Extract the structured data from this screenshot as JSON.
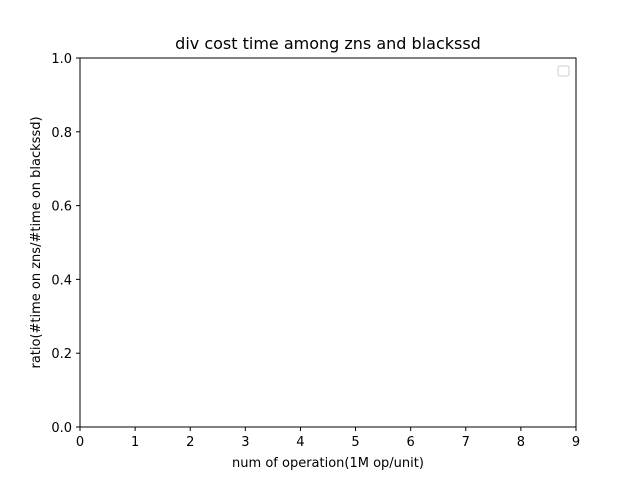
{
  "chart_data": {
    "type": "line",
    "title": "div cost time among zns and blackssd",
    "xlabel": "num of operation(1M op/unit)",
    "ylabel": "ratio(#time on zns/#time on blackssd)",
    "xlim": [
      0,
      9
    ],
    "ylim": [
      0.0,
      1.0
    ],
    "xticks": [
      "0",
      "1",
      "2",
      "3",
      "4",
      "5",
      "6",
      "7",
      "8",
      "9"
    ],
    "yticks": [
      "0.0",
      "0.2",
      "0.4",
      "0.6",
      "0.8",
      "1.0"
    ],
    "series": [],
    "legend": {
      "placement": "upper-right",
      "entries": []
    },
    "grid": false
  }
}
